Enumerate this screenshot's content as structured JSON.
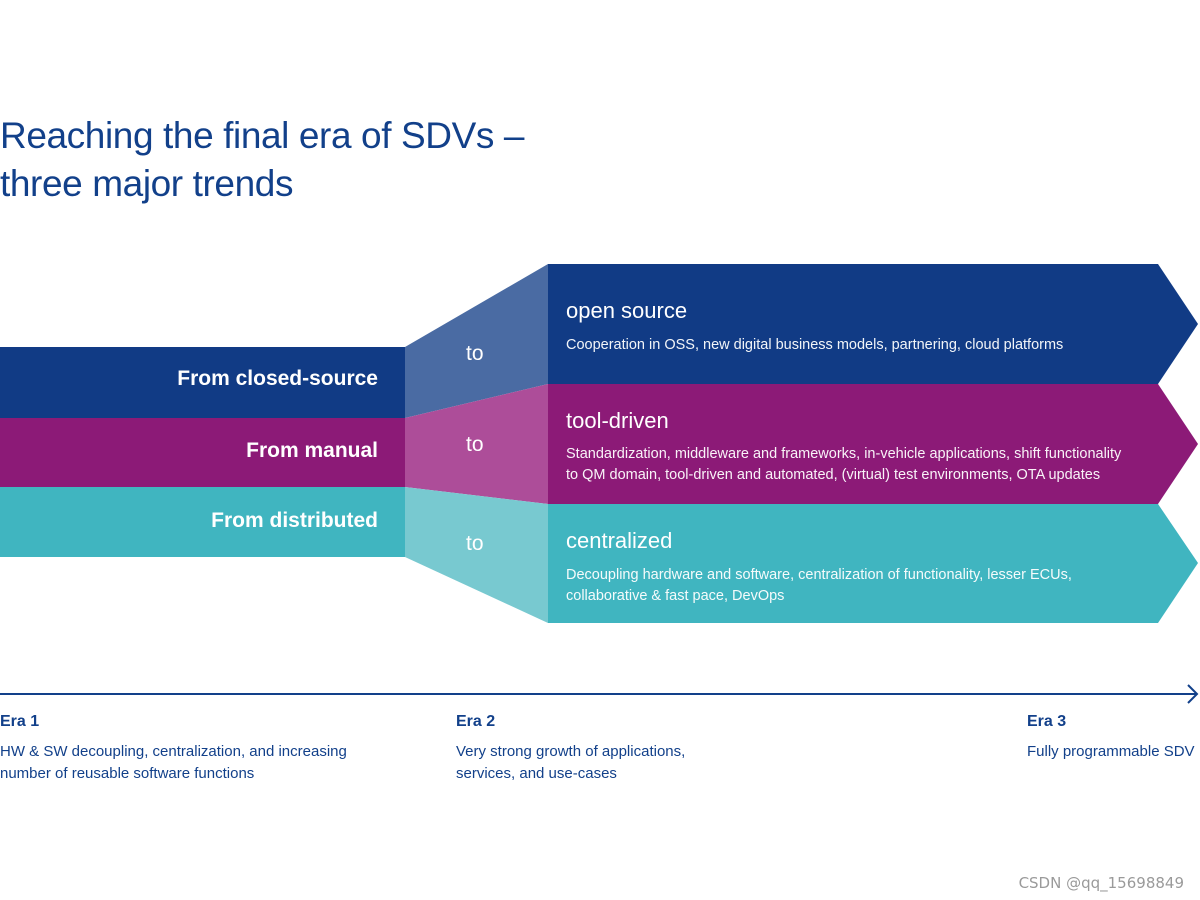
{
  "title": {
    "line1": "Reaching the final era of SDVs –",
    "line2": "three major trends"
  },
  "colors": {
    "navy": "#113b85",
    "navy_light": "#4a6ba3",
    "purple": "#8c1a77",
    "purple_light": "#ad4d99",
    "teal": "#40b5c0",
    "teal_light": "#78c9d0",
    "text_blue": "#12408a"
  },
  "trends": [
    {
      "from": "From closed-source",
      "connector": "to",
      "to_title": "open source",
      "to_desc": "Cooperation in OSS, new digital business models, partnering, cloud platforms"
    },
    {
      "from": "From manual",
      "connector": "to",
      "to_title": "tool-driven",
      "to_desc": "Standardization, middleware and frameworks, in-vehicle applications, shift functionality to QM domain, tool-driven and automated, (virtual) test environments, OTA updates"
    },
    {
      "from": "From distributed",
      "connector": "to",
      "to_title": "centralized",
      "to_desc": "Decoupling hardware and software, centralization of functionality, lesser ECUs, collaborative & fast pace, DevOps"
    }
  ],
  "eras": [
    {
      "name": "Era 1",
      "desc": "HW & SW decoupling, centralization, and increasing number of reusable software functions"
    },
    {
      "name": "Era 2",
      "desc": "Very strong growth of applications, services, and use-cases"
    },
    {
      "name": "Era 3",
      "desc": "Fully programmable SDV"
    }
  ],
  "watermark": "CSDN @qq_15698849"
}
